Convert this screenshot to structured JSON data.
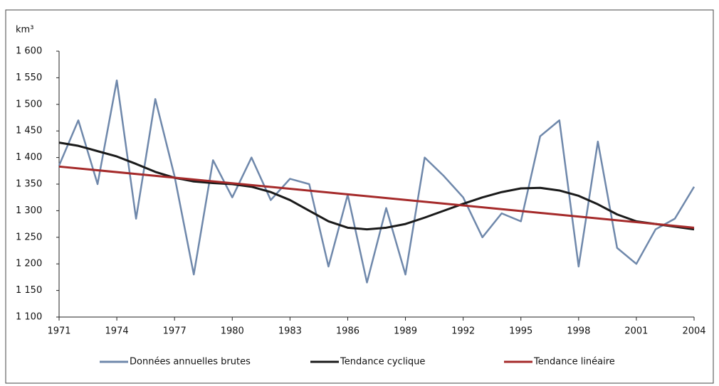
{
  "chart_data": {
    "type": "line",
    "y_label": "km³",
    "ylim": [
      1100,
      1600
    ],
    "yticks": [
      {
        "value": 1100,
        "label": "1 100"
      },
      {
        "value": 1150,
        "label": "1 150"
      },
      {
        "value": 1200,
        "label": "1 200"
      },
      {
        "value": 1250,
        "label": "1 250"
      },
      {
        "value": 1300,
        "label": "1 300"
      },
      {
        "value": 1350,
        "label": "1 350"
      },
      {
        "value": 1400,
        "label": "1 400"
      },
      {
        "value": 1450,
        "label": "1 450"
      },
      {
        "value": 1500,
        "label": "1 500"
      },
      {
        "value": 1550,
        "label": "1 550"
      },
      {
        "value": 1600,
        "label": "1 600"
      }
    ],
    "xlim": [
      1971,
      2004
    ],
    "xticks": [
      1971,
      1974,
      1977,
      1980,
      1983,
      1986,
      1989,
      1992,
      1995,
      1998,
      2001,
      2004
    ],
    "grid": false,
    "legend": "bottom",
    "series": [
      {
        "name": "Données annuelles brutes",
        "color": "#6f88ab",
        "x": [
          1971,
          1972,
          1973,
          1974,
          1975,
          1976,
          1977,
          1978,
          1979,
          1980,
          1981,
          1982,
          1983,
          1984,
          1985,
          1986,
          1987,
          1988,
          1989,
          1990,
          1991,
          1992,
          1993,
          1994,
          1995,
          1996,
          1997,
          1998,
          1999,
          2000,
          2001,
          2002,
          2003,
          2004
        ],
        "values": [
          1385,
          1470,
          1350,
          1545,
          1285,
          1510,
          1365,
          1180,
          1395,
          1325,
          1400,
          1320,
          1360,
          1350,
          1195,
          1330,
          1165,
          1305,
          1180,
          1400,
          1365,
          1325,
          1250,
          1295,
          1280,
          1440,
          1470,
          1195,
          1430,
          1230,
          1200,
          1265,
          1285,
          1345
        ]
      },
      {
        "name": "Tendance cyclique",
        "color": "#1a1a1a",
        "x": [
          1971,
          1972,
          1973,
          1974,
          1975,
          1976,
          1977,
          1978,
          1979,
          1980,
          1981,
          1982,
          1983,
          1984,
          1985,
          1986,
          1987,
          1988,
          1989,
          1990,
          1991,
          1992,
          1993,
          1994,
          1995,
          1996,
          1997,
          1998,
          1999,
          2000,
          2001,
          2002,
          2003,
          2004
        ],
        "values": [
          1428,
          1422,
          1412,
          1402,
          1388,
          1373,
          1362,
          1355,
          1352,
          1350,
          1345,
          1335,
          1320,
          1300,
          1280,
          1268,
          1265,
          1268,
          1275,
          1287,
          1300,
          1313,
          1325,
          1335,
          1342,
          1343,
          1338,
          1328,
          1312,
          1293,
          1280,
          1275,
          1270,
          1265
        ]
      },
      {
        "name": "Tendance linéaire",
        "color": "#a52a2a",
        "x": [
          1971,
          2004
        ],
        "values": [
          1383,
          1268
        ]
      }
    ]
  }
}
